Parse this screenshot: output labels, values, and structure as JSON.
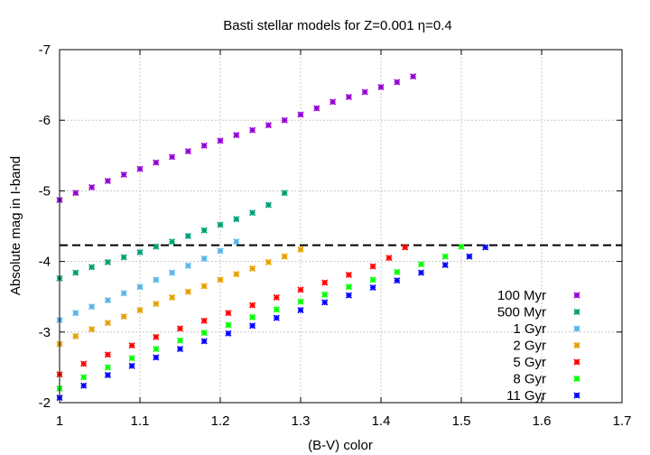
{
  "chart_data": {
    "type": "scatter",
    "title": "Basti stellar models for Z=0.001 η=0.4",
    "xlabel": "(B-V) color",
    "ylabel": "Absolute mag in I-band",
    "xlim": [
      1.0,
      1.7
    ],
    "ylim": [
      -2.0,
      -7.0
    ],
    "y_inverted": true,
    "grid": true,
    "legend_position": "bottom-right",
    "x_ticks": [
      "1",
      "1.1",
      "1.2",
      "1.3",
      "1.4",
      "1.5",
      "1.6",
      "1.7"
    ],
    "y_ticks": [
      "-2",
      "-3",
      "-4",
      "-5",
      "-6",
      "-7"
    ],
    "reference_line": {
      "y": -4.23,
      "style": "dashed"
    },
    "series": [
      {
        "name": "100 Myr",
        "color": "#9400d3",
        "x": [
          1.0,
          1.02,
          1.04,
          1.06,
          1.08,
          1.1,
          1.12,
          1.14,
          1.16,
          1.18,
          1.2,
          1.22,
          1.24,
          1.26,
          1.28,
          1.3,
          1.32,
          1.34,
          1.36,
          1.38,
          1.4,
          1.42,
          1.44
        ],
        "y": [
          -4.87,
          -4.97,
          -5.05,
          -5.14,
          -5.23,
          -5.31,
          -5.4,
          -5.48,
          -5.56,
          -5.64,
          -5.71,
          -5.79,
          -5.86,
          -5.93,
          -6.0,
          -6.08,
          -6.17,
          -6.26,
          -6.33,
          -6.4,
          -6.47,
          -6.54,
          -6.62
        ]
      },
      {
        "name": "500 Myr",
        "color": "#009e73",
        "x": [
          1.0,
          1.02,
          1.04,
          1.06,
          1.08,
          1.1,
          1.12,
          1.14,
          1.16,
          1.18,
          1.2,
          1.22,
          1.24,
          1.26,
          1.28
        ],
        "y": [
          -3.76,
          -3.84,
          -3.92,
          -3.99,
          -4.06,
          -4.13,
          -4.21,
          -4.28,
          -4.36,
          -4.44,
          -4.52,
          -4.6,
          -4.69,
          -4.8,
          -4.97
        ]
      },
      {
        "name": "1 Gyr",
        "color": "#56b4e9",
        "x": [
          1.0,
          1.02,
          1.04,
          1.06,
          1.08,
          1.1,
          1.12,
          1.14,
          1.16,
          1.18,
          1.2,
          1.22
        ],
        "y": [
          -3.17,
          -3.27,
          -3.36,
          -3.45,
          -3.55,
          -3.64,
          -3.74,
          -3.84,
          -3.94,
          -4.04,
          -4.15,
          -4.28
        ]
      },
      {
        "name": "2 Gyr",
        "color": "#e69f00",
        "x": [
          1.0,
          1.02,
          1.04,
          1.06,
          1.08,
          1.1,
          1.12,
          1.14,
          1.16,
          1.18,
          1.2,
          1.22,
          1.24,
          1.26,
          1.28,
          1.3
        ],
        "y": [
          -2.83,
          -2.94,
          -3.04,
          -3.13,
          -3.22,
          -3.31,
          -3.4,
          -3.49,
          -3.57,
          -3.65,
          -3.74,
          -3.82,
          -3.9,
          -3.99,
          -4.07,
          -4.17
        ]
      },
      {
        "name": "5 Gyr",
        "color": "#ff0000",
        "x": [
          1.0,
          1.03,
          1.06,
          1.09,
          1.12,
          1.15,
          1.18,
          1.21,
          1.24,
          1.27,
          1.3,
          1.33,
          1.36,
          1.39,
          1.41,
          1.43
        ],
        "y": [
          -2.4,
          -2.55,
          -2.68,
          -2.81,
          -2.93,
          -3.05,
          -3.16,
          -3.27,
          -3.38,
          -3.49,
          -3.6,
          -3.7,
          -3.81,
          -3.93,
          -4.05,
          -4.2
        ]
      },
      {
        "name": "8 Gyr",
        "color": "#00ff00",
        "x": [
          1.0,
          1.03,
          1.06,
          1.09,
          1.12,
          1.15,
          1.18,
          1.21,
          1.24,
          1.27,
          1.3,
          1.33,
          1.36,
          1.39,
          1.42,
          1.45,
          1.48,
          1.5
        ],
        "y": [
          -2.2,
          -2.36,
          -2.5,
          -2.63,
          -2.76,
          -2.88,
          -2.99,
          -3.1,
          -3.21,
          -3.32,
          -3.43,
          -3.53,
          -3.64,
          -3.74,
          -3.85,
          -3.96,
          -4.07,
          -4.21
        ]
      },
      {
        "name": "11 Gyr",
        "color": "#0000ff",
        "x": [
          1.0,
          1.03,
          1.06,
          1.09,
          1.12,
          1.15,
          1.18,
          1.21,
          1.24,
          1.27,
          1.3,
          1.33,
          1.36,
          1.39,
          1.42,
          1.45,
          1.48,
          1.51,
          1.53
        ],
        "y": [
          -2.07,
          -2.24,
          -2.39,
          -2.52,
          -2.64,
          -2.76,
          -2.87,
          -2.98,
          -3.09,
          -3.2,
          -3.31,
          -3.42,
          -3.52,
          -3.63,
          -3.73,
          -3.84,
          -3.95,
          -4.07,
          -4.2
        ]
      }
    ]
  }
}
